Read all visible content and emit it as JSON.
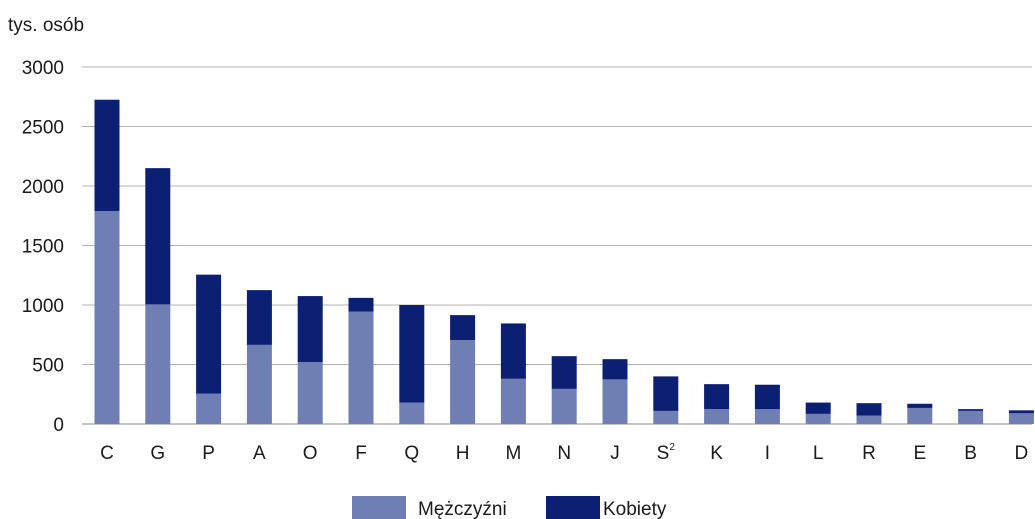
{
  "chart_data": {
    "type": "bar",
    "stacked": true,
    "y_unit_label": "tys. osób",
    "categories": [
      {
        "label": "C",
        "sup": ""
      },
      {
        "label": "G",
        "sup": ""
      },
      {
        "label": "P",
        "sup": ""
      },
      {
        "label": "A",
        "sup": ""
      },
      {
        "label": "O",
        "sup": ""
      },
      {
        "label": "F",
        "sup": ""
      },
      {
        "label": "Q",
        "sup": ""
      },
      {
        "label": "H",
        "sup": ""
      },
      {
        "label": "M",
        "sup": ""
      },
      {
        "label": "N",
        "sup": ""
      },
      {
        "label": "J",
        "sup": ""
      },
      {
        "label": "S",
        "sup": "2"
      },
      {
        "label": "K",
        "sup": ""
      },
      {
        "label": "I",
        "sup": ""
      },
      {
        "label": "L",
        "sup": ""
      },
      {
        "label": "R",
        "sup": ""
      },
      {
        "label": "E",
        "sup": ""
      },
      {
        "label": "B",
        "sup": ""
      },
      {
        "label": "D",
        "sup": ""
      }
    ],
    "series": [
      {
        "name": "Mężczyźni",
        "color": "#6f7fb4",
        "values": [
          1790,
          1005,
          255,
          665,
          520,
          945,
          180,
          705,
          380,
          295,
          375,
          110,
          125,
          125,
          85,
          70,
          135,
          110,
          90
        ]
      },
      {
        "name": "Kobiety",
        "color": "#0b1f73",
        "values": [
          935,
          1145,
          1000,
          460,
          555,
          115,
          820,
          210,
          465,
          275,
          170,
          290,
          210,
          205,
          95,
          105,
          35,
          15,
          25
        ]
      }
    ],
    "ylim": [
      0,
      3000
    ],
    "yticks": [
      0,
      500,
      1000,
      1500,
      2000,
      2500,
      3000
    ],
    "grid": true,
    "legend_position": "bottom-center"
  }
}
